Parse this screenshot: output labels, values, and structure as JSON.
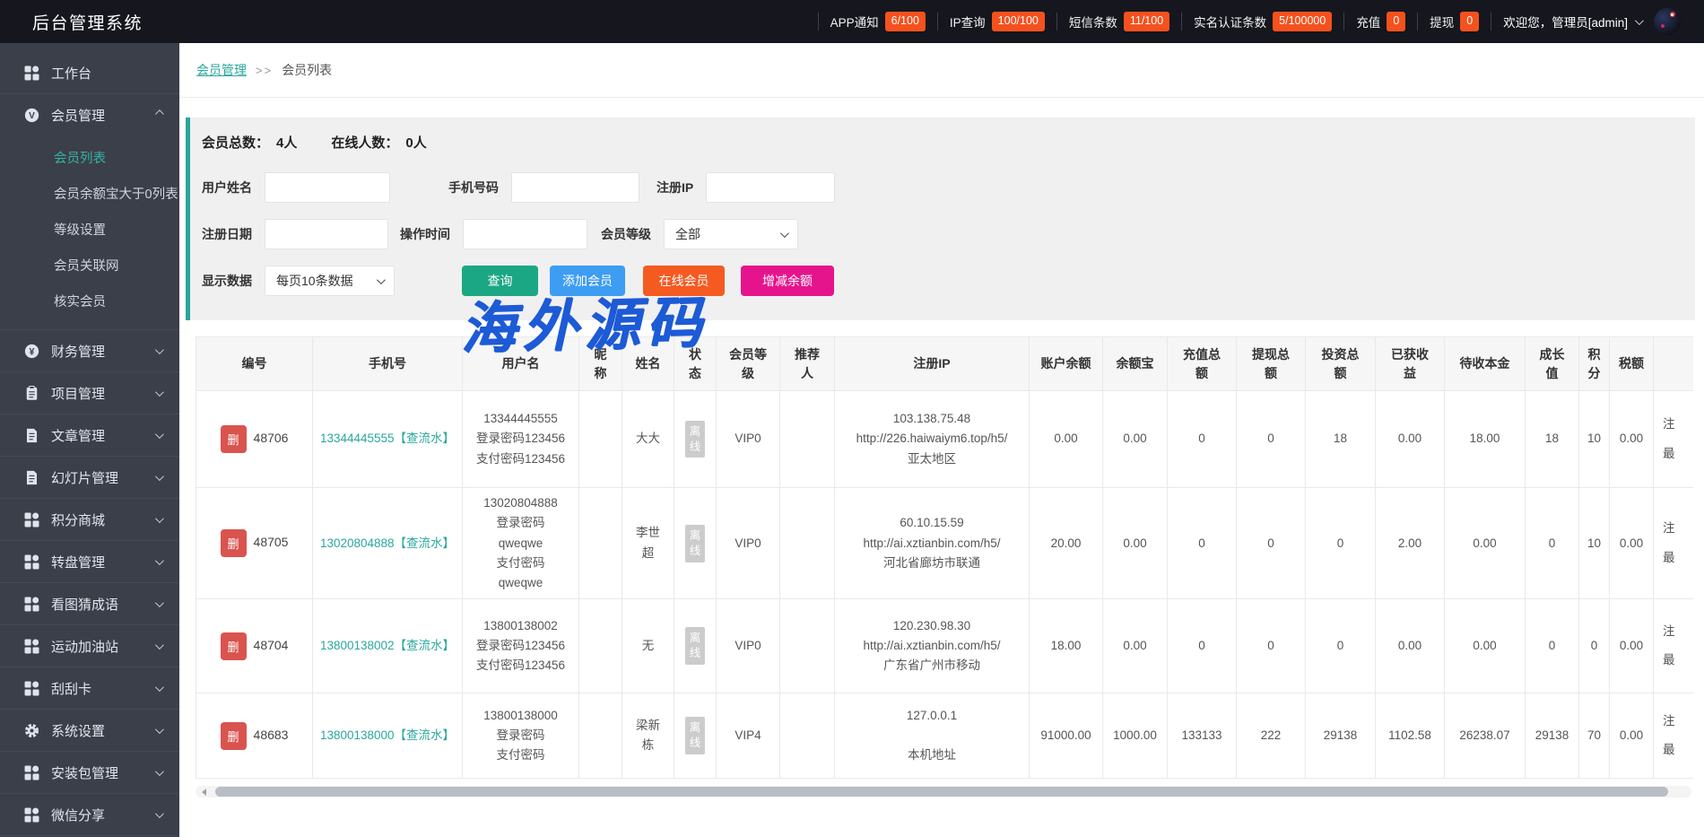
{
  "header": {
    "title": "后台管理系统",
    "stats": [
      {
        "label": "APP通知",
        "value": "6/100"
      },
      {
        "label": "IP查询",
        "value": "100/100"
      },
      {
        "label": "短信条数",
        "value": "11/100"
      },
      {
        "label": "实名认证条数",
        "value": "5/100000"
      },
      {
        "label": "充值",
        "value": "0"
      },
      {
        "label": "提现",
        "value": "0"
      }
    ],
    "welcome": "欢迎您，管理员[admin]"
  },
  "sidebar": {
    "items": [
      {
        "label": "工作台",
        "icon": "grid-icon",
        "chevron": ""
      },
      {
        "label": "会员管理",
        "icon": "member-circle-icon",
        "chevron": "up",
        "children": [
          {
            "label": "会员列表",
            "active": true
          },
          {
            "label": "会员余额宝大于0列表",
            "active": false
          },
          {
            "label": "等级设置",
            "active": false
          },
          {
            "label": "会员关联网",
            "active": false
          },
          {
            "label": "核实会员",
            "active": false
          }
        ]
      },
      {
        "label": "财务管理",
        "icon": "finance-circle-icon",
        "chevron": "down"
      },
      {
        "label": "项目管理",
        "icon": "clipboard-icon",
        "chevron": "down"
      },
      {
        "label": "文章管理",
        "icon": "document-icon",
        "chevron": "down"
      },
      {
        "label": "幻灯片管理",
        "icon": "document-icon",
        "chevron": "down"
      },
      {
        "label": "积分商城",
        "icon": "grid-icon",
        "chevron": "down"
      },
      {
        "label": "转盘管理",
        "icon": "grid-icon",
        "chevron": "down"
      },
      {
        "label": "看图猜成语",
        "icon": "grid-icon",
        "chevron": "down"
      },
      {
        "label": "运动加油站",
        "icon": "grid-icon",
        "chevron": "down"
      },
      {
        "label": "刮刮卡",
        "icon": "grid-icon",
        "chevron": "down"
      },
      {
        "label": "系统设置",
        "icon": "gear-icon",
        "chevron": "down"
      },
      {
        "label": "安装包管理",
        "icon": "grid-icon",
        "chevron": "down"
      },
      {
        "label": "微信分享",
        "icon": "grid-icon",
        "chevron": "down"
      }
    ]
  },
  "breadcrumb": {
    "parent": "会员管理",
    "separator": ">>",
    "current": "会员列表"
  },
  "filter": {
    "member_total_label": "会员总数：",
    "member_total_value": "4人",
    "online_label": "在线人数：",
    "online_value": "0人",
    "username_label": "用户姓名",
    "phone_label": "手机号码",
    "ip_label": "注册IP",
    "reg_date_label": "注册日期",
    "op_time_label": "操作时间",
    "level_label": "会员等级",
    "level_value": "全部",
    "page_size_label": "显示数据",
    "page_size_value": "每页10条数据",
    "buttons": [
      {
        "label": "查询",
        "color": "#1ba784"
      },
      {
        "label": "添加会员",
        "color": "#3d9df3"
      },
      {
        "label": "在线会员",
        "color": "#f55a21"
      },
      {
        "label": "增减余额",
        "color": "#e6148c"
      }
    ]
  },
  "watermark": "海外源码",
  "table": {
    "delete_label": "删",
    "columns": [
      "编号",
      "手机号",
      "用户名",
      "昵\n称",
      "姓名",
      "状\n态",
      "会员等\n级",
      "推荐\n人",
      "注册IP",
      "账户余额",
      "余额宝",
      "充值总\n额",
      "提现总\n额",
      "投资总\n额",
      "已获收\n益",
      "待收本金",
      "成长\n值",
      "积\n分",
      "税额",
      ""
    ],
    "rows": [
      {
        "id": "48706",
        "phone": "13344445555【查流水】",
        "username": "13344445555\n登录密码123456\n支付密码123456",
        "nickname": "",
        "name": "大大",
        "status": "离\n线",
        "level": "VIP0",
        "referrer": "",
        "ip": "103.138.75.48\nhttp://226.haiwaiym6.top/h5/\n亚太地区",
        "balance": "0.00",
        "yuebao": "0.00",
        "recharge": "0",
        "withdraw": "0",
        "invest": "18",
        "earned": "0.00",
        "pending": "18.00",
        "growth": "18",
        "points": "10",
        "tax": "0.00",
        "clipped": "注\n最"
      },
      {
        "id": "48705",
        "phone": "13020804888【查流水】",
        "username": "13020804888\n登录密码\nqweqwe\n支付密码\nqweqwe",
        "nickname": "",
        "name": "李世\n超",
        "status": "离\n线",
        "level": "VIP0",
        "referrer": "",
        "ip": "60.10.15.59\nhttp://ai.xztianbin.com/h5/\n河北省廊坊市联通",
        "balance": "20.00",
        "yuebao": "0.00",
        "recharge": "0",
        "withdraw": "0",
        "invest": "0",
        "earned": "2.00",
        "pending": "0.00",
        "growth": "0",
        "points": "10",
        "tax": "0.00",
        "clipped": "注\n最"
      },
      {
        "id": "48704",
        "phone": "13800138002【查流水】",
        "username": "13800138002\n登录密码123456\n支付密码123456",
        "nickname": "",
        "name": "无",
        "status": "离\n线",
        "level": "VIP0",
        "referrer": "",
        "ip": "120.230.98.30\nhttp://ai.xztianbin.com/h5/\n广东省广州市移动",
        "balance": "18.00",
        "yuebao": "0.00",
        "recharge": "0",
        "withdraw": "0",
        "invest": "0",
        "earned": "0.00",
        "pending": "0.00",
        "growth": "0",
        "points": "0",
        "tax": "0.00",
        "clipped": "注\n最"
      },
      {
        "id": "48683",
        "phone": "13800138000【查流水】",
        "username": "13800138000\n登录密码\n支付密码",
        "nickname": "",
        "name": "梁新\n栋",
        "status": "离\n线",
        "level": "VIP4",
        "referrer": "",
        "ip": "127.0.0.1\n\n本机地址",
        "balance": "91000.00",
        "yuebao": "1000.00",
        "recharge": "133133",
        "withdraw": "222",
        "invest": "29138",
        "earned": "1102.58",
        "pending": "26238.07",
        "growth": "29138",
        "points": "70",
        "tax": "0.00",
        "clipped": "注\n最"
      }
    ]
  }
}
